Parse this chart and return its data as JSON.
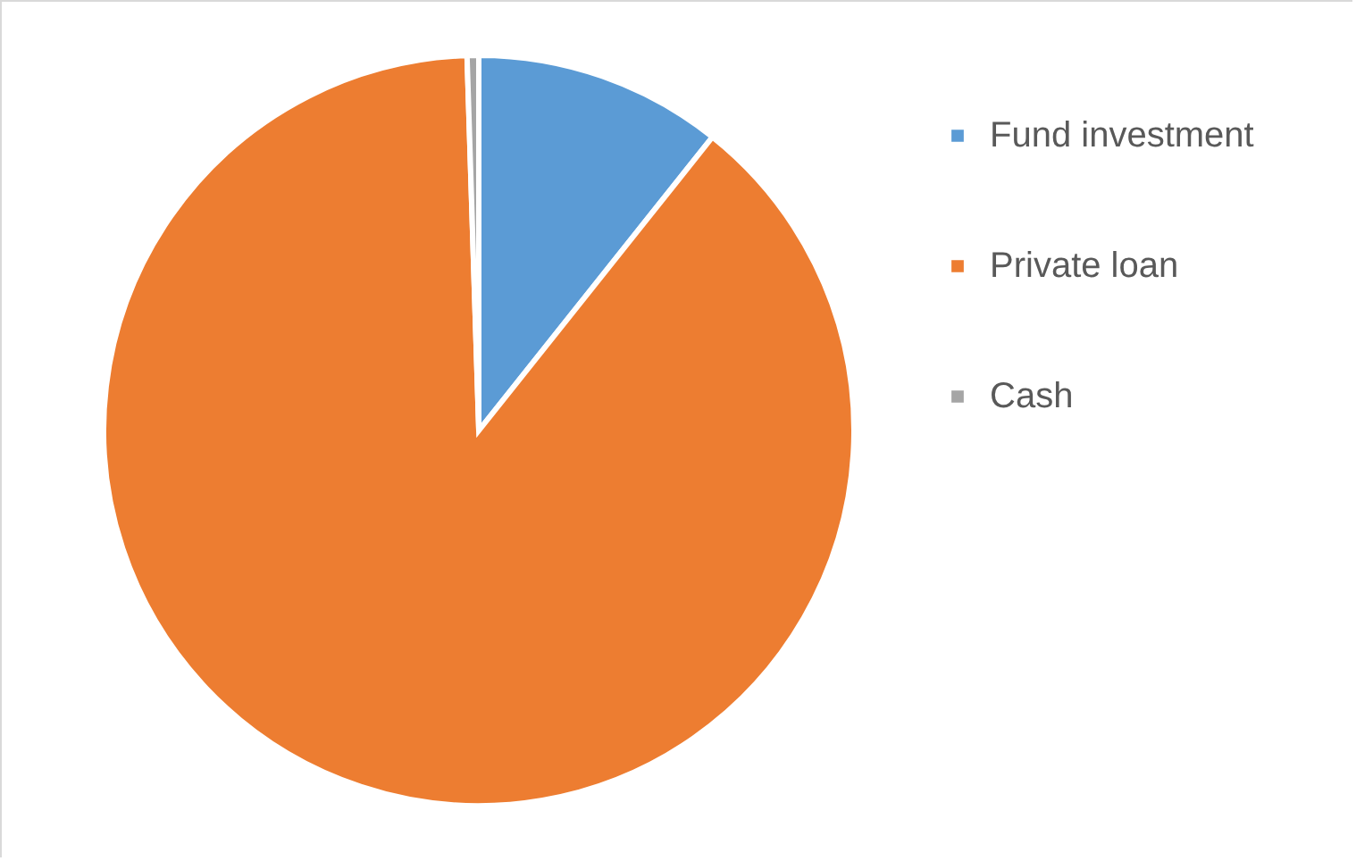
{
  "chart_data": {
    "type": "pie",
    "categories": [
      "Fund investment",
      "Private loan",
      "Cash"
    ],
    "values": [
      10.7,
      88.8,
      0.5
    ],
    "colors": [
      "#5b9bd5",
      "#ed7d31",
      "#a5a5a5"
    ],
    "legend": "right"
  }
}
